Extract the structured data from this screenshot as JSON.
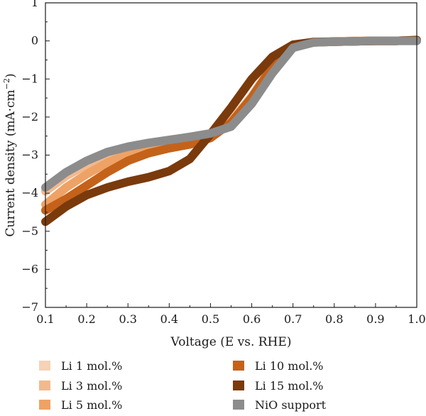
{
  "chart_data": {
    "type": "line",
    "xlabel": "Voltage (E vs. RHE)",
    "ylabel": "Current density (mA·cm",
    "ylabel_sup": "−2",
    "ylabel_close": ")",
    "xlim": [
      0.1,
      1.0
    ],
    "ylim": [
      -7,
      1
    ],
    "x_ticks": [
      "0.1",
      "0.2",
      "0.3",
      "0.4",
      "0.5",
      "0.6",
      "0.7",
      "0.8",
      "0.9",
      "1.0"
    ],
    "y_ticks": [
      "1",
      "0",
      "−1",
      "−2",
      "−3",
      "−4",
      "−5",
      "−6",
      "−7"
    ],
    "grid": false,
    "legend_position": "bottom",
    "series": [
      {
        "name": "Li 1 mol.%",
        "color": "#f6d2b6",
        "x": [
          0.1,
          0.15,
          0.2,
          0.25,
          0.3,
          0.35,
          0.4,
          0.45,
          0.5,
          0.55,
          0.6,
          0.65,
          0.7,
          0.75,
          0.8,
          0.85,
          0.9,
          0.95,
          1.0
        ],
        "y": [
          -3.9,
          -3.5,
          -3.2,
          -2.95,
          -2.8,
          -2.7,
          -2.62,
          -2.55,
          -2.45,
          -2.1,
          -1.45,
          -0.65,
          -0.12,
          -0.02,
          -0.01,
          0.0,
          0.0,
          0.0,
          0.02
        ]
      },
      {
        "name": "Li 3 mol.%",
        "color": "#f2b98f",
        "x": [
          0.1,
          0.15,
          0.2,
          0.25,
          0.3,
          0.35,
          0.4,
          0.45,
          0.5,
          0.55,
          0.6,
          0.65,
          0.7,
          0.75,
          0.8,
          0.85,
          0.9,
          0.95,
          1.0
        ],
        "y": [
          -3.95,
          -3.55,
          -3.25,
          -3.0,
          -2.85,
          -2.75,
          -2.65,
          -2.57,
          -2.47,
          -2.12,
          -1.48,
          -0.68,
          -0.13,
          -0.03,
          -0.01,
          0.0,
          0.0,
          0.0,
          0.03
        ]
      },
      {
        "name": "Li 5 mol.%",
        "color": "#eea266",
        "x": [
          0.1,
          0.15,
          0.2,
          0.25,
          0.3,
          0.35,
          0.4,
          0.45,
          0.5,
          0.55,
          0.6,
          0.65,
          0.7,
          0.75,
          0.8,
          0.85,
          0.9,
          0.95,
          1.0
        ],
        "y": [
          -4.3,
          -3.85,
          -3.5,
          -3.2,
          -2.98,
          -2.82,
          -2.7,
          -2.6,
          -2.48,
          -2.13,
          -1.5,
          -0.7,
          -0.14,
          -0.04,
          -0.02,
          -0.01,
          0.0,
          0.0,
          0.02
        ]
      },
      {
        "name": "Li 10 mol.%",
        "color": "#c4621a",
        "x": [
          0.1,
          0.15,
          0.2,
          0.25,
          0.3,
          0.35,
          0.4,
          0.45,
          0.5,
          0.55,
          0.6,
          0.65,
          0.7,
          0.75,
          0.8,
          0.85,
          0.9,
          0.95,
          1.0
        ],
        "y": [
          -4.45,
          -4.15,
          -3.8,
          -3.45,
          -3.15,
          -2.95,
          -2.82,
          -2.72,
          -2.55,
          -2.15,
          -1.48,
          -0.68,
          -0.13,
          -0.04,
          -0.02,
          -0.01,
          0.0,
          0.0,
          0.02
        ]
      },
      {
        "name": "Li 15 mol.%",
        "color": "#7a3a0c",
        "x": [
          0.1,
          0.15,
          0.2,
          0.25,
          0.3,
          0.35,
          0.4,
          0.45,
          0.5,
          0.55,
          0.6,
          0.65,
          0.7,
          0.75,
          0.8,
          0.85,
          0.9,
          0.95,
          1.0
        ],
        "y": [
          -4.75,
          -4.35,
          -4.05,
          -3.85,
          -3.7,
          -3.58,
          -3.42,
          -3.1,
          -2.45,
          -1.75,
          -1.0,
          -0.42,
          -0.1,
          -0.03,
          -0.02,
          -0.01,
          0.0,
          0.0,
          0.02
        ]
      },
      {
        "name": "NiO support",
        "color": "#8c8c8c",
        "x": [
          0.1,
          0.15,
          0.2,
          0.25,
          0.3,
          0.35,
          0.4,
          0.45,
          0.5,
          0.55,
          0.6,
          0.65,
          0.7,
          0.75,
          0.8,
          0.85,
          0.9,
          0.95,
          1.0
        ],
        "y": [
          -3.85,
          -3.45,
          -3.15,
          -2.92,
          -2.78,
          -2.68,
          -2.6,
          -2.52,
          -2.43,
          -2.25,
          -1.65,
          -0.85,
          -0.18,
          -0.04,
          -0.02,
          -0.01,
          0.0,
          0.0,
          0.0
        ]
      }
    ]
  }
}
